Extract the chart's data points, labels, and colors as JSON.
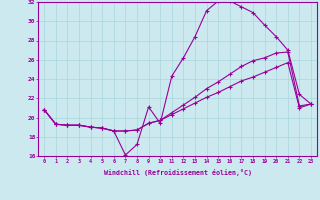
{
  "xlabel": "Windchill (Refroidissement éolien,°C)",
  "xlim_min": -0.5,
  "xlim_max": 23.5,
  "ylim_min": 16,
  "ylim_max": 32,
  "xticks": [
    0,
    1,
    2,
    3,
    4,
    5,
    6,
    7,
    8,
    9,
    10,
    11,
    12,
    13,
    14,
    15,
    16,
    17,
    18,
    19,
    20,
    21,
    22,
    23
  ],
  "yticks": [
    16,
    18,
    20,
    22,
    24,
    26,
    28,
    30,
    32
  ],
  "line_color": "#990099",
  "bg_color": "#cce9f0",
  "grid_color": "#aad4dd",
  "line1_x": [
    0,
    1,
    2,
    3,
    4,
    5,
    6,
    7,
    8,
    9,
    10,
    11,
    12,
    13,
    14,
    15,
    16,
    17,
    18,
    19,
    20,
    21,
    22,
    23
  ],
  "line1_y": [
    20.8,
    19.3,
    19.2,
    19.2,
    19.0,
    18.9,
    18.6,
    16.1,
    17.2,
    21.1,
    19.4,
    24.3,
    26.2,
    28.4,
    31.1,
    32.1,
    32.1,
    31.5,
    30.9,
    29.6,
    28.4,
    27.0,
    22.4,
    21.4
  ],
  "line2_x": [
    0,
    1,
    2,
    3,
    4,
    5,
    6,
    7,
    8,
    9,
    10,
    11,
    12,
    13,
    14,
    15,
    16,
    17,
    18,
    19,
    20,
    21,
    22,
    23
  ],
  "line2_y": [
    20.8,
    19.3,
    19.2,
    19.2,
    19.0,
    18.9,
    18.6,
    18.6,
    18.7,
    19.4,
    19.7,
    20.5,
    21.3,
    22.1,
    23.0,
    23.7,
    24.5,
    25.3,
    25.9,
    26.2,
    26.7,
    26.8,
    21.2,
    21.4
  ],
  "line3_x": [
    0,
    1,
    2,
    3,
    4,
    5,
    6,
    7,
    8,
    9,
    10,
    11,
    12,
    13,
    14,
    15,
    16,
    17,
    18,
    19,
    20,
    21,
    22,
    23
  ],
  "line3_y": [
    20.8,
    19.3,
    19.2,
    19.2,
    19.0,
    18.9,
    18.6,
    18.6,
    18.7,
    19.4,
    19.7,
    20.3,
    20.9,
    21.5,
    22.1,
    22.6,
    23.2,
    23.8,
    24.2,
    24.7,
    25.2,
    25.7,
    21.0,
    21.4
  ]
}
